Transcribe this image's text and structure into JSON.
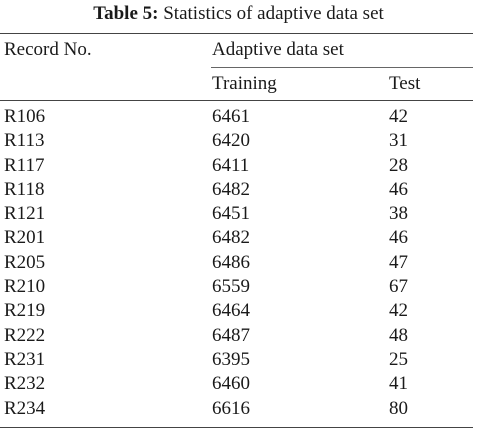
{
  "caption": {
    "label": "Table 5:",
    "text": "Statistics of adaptive data set"
  },
  "table": {
    "headers": {
      "record": "Record No.",
      "group": "Adaptive data set",
      "training": "Training",
      "test": "Test"
    },
    "rows": [
      {
        "record": "R106",
        "training": "6461",
        "test": "42"
      },
      {
        "record": "R113",
        "training": "6420",
        "test": "31"
      },
      {
        "record": "R117",
        "training": "6411",
        "test": "28"
      },
      {
        "record": "R118",
        "training": "6482",
        "test": "46"
      },
      {
        "record": "R121",
        "training": "6451",
        "test": "38"
      },
      {
        "record": "R201",
        "training": "6482",
        "test": "46"
      },
      {
        "record": "R205",
        "training": "6486",
        "test": "47"
      },
      {
        "record": "R210",
        "training": "6559",
        "test": "67"
      },
      {
        "record": "R219",
        "training": "6464",
        "test": "42"
      },
      {
        "record": "R222",
        "training": "6487",
        "test": "48"
      },
      {
        "record": "R231",
        "training": "6395",
        "test": "25"
      },
      {
        "record": "R232",
        "training": "6460",
        "test": "41"
      },
      {
        "record": "R234",
        "training": "6616",
        "test": "80"
      }
    ]
  }
}
